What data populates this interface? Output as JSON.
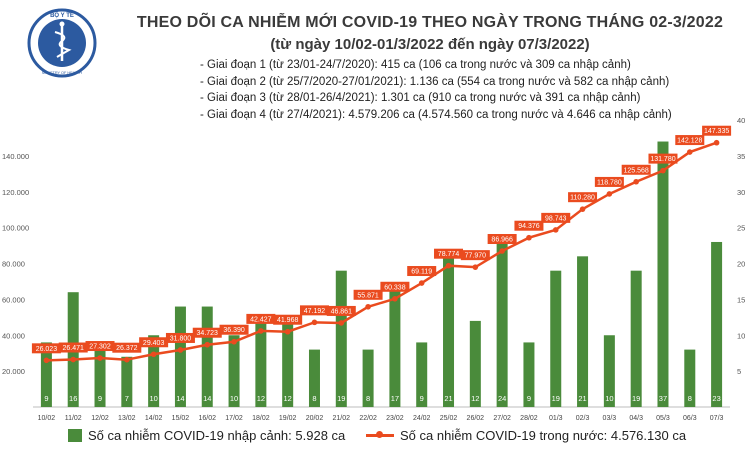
{
  "header": {
    "logo_text": "BỘ Y TẾ",
    "logo_subtext": "MINISTRY OF HEALTH",
    "title": "THEO DÕI CA NHIỄM MỚI COVID-19 THEO NGÀY TRONG THÁNG 02-3/2022",
    "subtitle": "(từ ngày 10/02-01/3/2022 đến ngày 07/3/2022)",
    "phases": [
      "Giai đoạn 1 (từ 23/01-24/7/2020): 415 ca (106 ca trong nước và 309 ca nhập cảnh)",
      "Giai đoạn 2 (từ 25/7/2020-27/01/2021): 1.136 ca (554 ca trong nước và 582 ca nhập cảnh)",
      "Giai đoạn 3 (từ 28/01-26/4/2021): 1.301 ca (910 ca trong nước và 391 ca nhập cảnh)",
      "Giai đoạn 4 (từ 27/4/2021): 4.579.206 ca (4.574.560 ca trong nước và 4.646 ca nhập cảnh)"
    ]
  },
  "legend": {
    "bars": "Số ca nhiễm COVID-19 nhập cảnh: 5.928 ca",
    "line": "Số ca nhiễm COVID-19 trong nước: 4.576.130 ca"
  },
  "colors": {
    "bar": "#4a8b3b",
    "line": "#ea4b1f",
    "bar_label": "#ffffff",
    "logo": "#2c5aa0"
  },
  "chart_data": {
    "type": "bar+line",
    "categories": [
      "10/02",
      "11/02",
      "12/02",
      "13/02",
      "14/02",
      "15/02",
      "16/02",
      "17/02",
      "18/02",
      "19/02",
      "20/02",
      "21/02",
      "22/02",
      "23/02",
      "24/02",
      "25/02",
      "26/02",
      "27/02",
      "28/02",
      "01/3",
      "02/3",
      "03/3",
      "04/3",
      "05/3",
      "06/3",
      "07/3"
    ],
    "series": [
      {
        "name": "Số ca nhiễm COVID-19 nhập cảnh: 5.928 ca",
        "axis": "right",
        "kind": "bar",
        "values": [
          9,
          16,
          9,
          7,
          10,
          14,
          14,
          10,
          12,
          12,
          8,
          19,
          8,
          17,
          9,
          21,
          12,
          24,
          9,
          19,
          21,
          10,
          19,
          37,
          8,
          23
        ]
      },
      {
        "name": "Số ca nhiễm COVID-19 trong nước: 4.576.130 ca",
        "axis": "left",
        "kind": "line",
        "values": [
          26023,
          26471,
          27302,
          26372,
          29403,
          31800,
          34723,
          36390,
          42427,
          41968,
          47192,
          46861,
          55871,
          60338,
          69119,
          78774,
          77970,
          86966,
          94376,
          98743,
          110280,
          118780,
          125568,
          131780,
          142128,
          147335
        ],
        "labels": [
          "26.023",
          "26.471",
          "27.302",
          "26.372",
          "29.403",
          "31.800",
          "34.723",
          "36.390",
          "42.427",
          "41.968",
          "47.192",
          "46.861",
          "55.871",
          "60.338",
          "69.119",
          "78.774",
          "77.970",
          "86.966",
          "94.376",
          "98.743",
          "110.280",
          "118.780",
          "125.568",
          "131.780",
          "142.128",
          "147.335"
        ]
      }
    ],
    "y_left": {
      "range": [
        0,
        160000
      ],
      "ticks": [
        "",
        "20.000",
        "40.000",
        "60.000",
        "80.000",
        "100.000",
        "120.000",
        "140.000"
      ],
      "tick_values": [
        0,
        20000,
        40000,
        60000,
        80000,
        100000,
        120000,
        140000
      ]
    },
    "y_right": {
      "range": [
        0,
        40
      ],
      "ticks": [
        "5",
        "10",
        "15",
        "20",
        "25",
        "30",
        "35",
        "40"
      ],
      "tick_values": [
        5,
        10,
        15,
        20,
        25,
        30,
        35,
        40
      ]
    },
    "grid": false,
    "legend_position": "bottom"
  }
}
